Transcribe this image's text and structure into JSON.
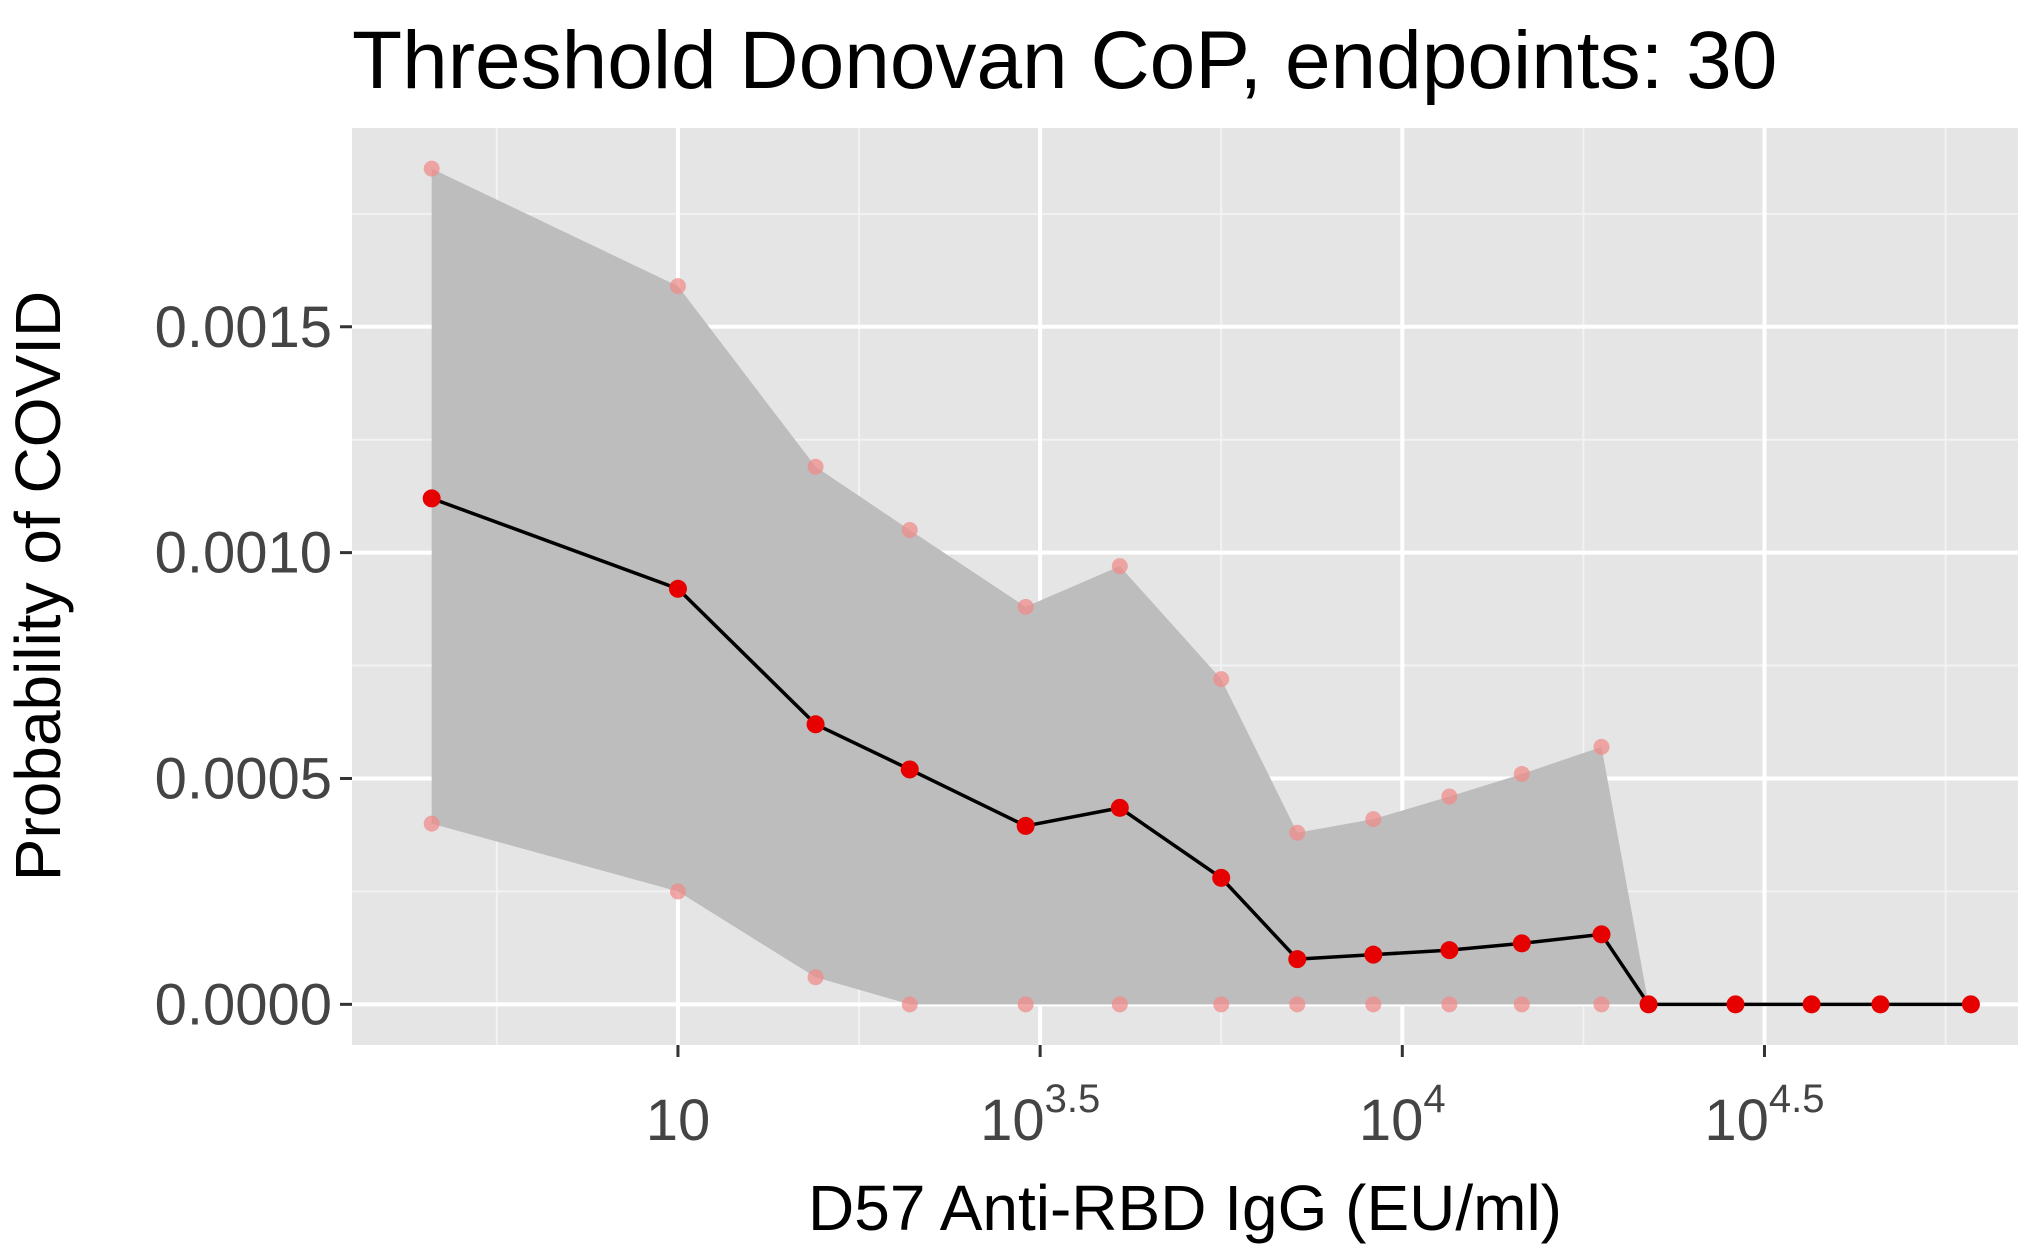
{
  "chart_data": {
    "type": "line",
    "title": "Threshold Donovan CoP, endpoints: 30",
    "xlabel": "D57 Anti-RBD IgG (EU/ml)",
    "ylabel": "Probability of COVID",
    "x_scale": "log10",
    "xlim_log10": [
      2.55,
      4.85
    ],
    "ylim": [
      -9e-05,
      0.00194
    ],
    "x_ticks": [
      {
        "value": 3.0,
        "base": "10",
        "exponent": ""
      },
      {
        "value": 3.5,
        "base": "10",
        "exponent": "3.5"
      },
      {
        "value": 4.0,
        "base": "10",
        "exponent": "4"
      },
      {
        "value": 4.5,
        "base": "10",
        "exponent": "4.5"
      }
    ],
    "y_ticks": [
      {
        "value": 0.0,
        "label": "0.0000"
      },
      {
        "value": 0.0005,
        "label": "0.0005"
      },
      {
        "value": 0.001,
        "label": "0.0010"
      },
      {
        "value": 0.0015,
        "label": "0.0015"
      }
    ],
    "grid": true,
    "series": [
      {
        "x_log10": [
          2.66,
          3.0,
          3.19,
          3.32,
          3.48,
          3.61,
          3.75,
          3.855,
          3.96,
          4.065,
          4.165,
          4.275,
          4.34,
          4.46,
          4.565,
          4.66,
          4.785
        ],
        "estimate": [
          0.00112,
          0.00092,
          0.00062,
          0.00052,
          0.000395,
          0.000435,
          0.00028,
          0.0001,
          0.00011,
          0.00012,
          0.000135,
          0.000155,
          0.0,
          0.0,
          0.0,
          0.0,
          0.0
        ],
        "lower": [
          0.0004,
          0.00025,
          6e-05,
          0.0,
          0.0,
          0.0,
          0.0,
          0.0,
          0.0,
          0.0,
          0.0,
          0.0,
          0.0,
          0.0,
          0.0,
          0.0,
          0.0
        ],
        "upper": [
          0.00185,
          0.00159,
          0.00119,
          0.00105,
          0.00088,
          0.00097,
          0.00072,
          0.00038,
          0.00041,
          0.00046,
          0.00051,
          0.00057,
          0.0,
          0.0,
          0.0,
          0.0,
          0.0
        ]
      }
    ],
    "colors": {
      "panel_bg": "#e5e5e5",
      "grid_major": "#ffffff",
      "grid_minor": "#f2f2f2",
      "ribbon": "#bdbdbd",
      "line": "#000000",
      "point": "#e60000",
      "ci_point": "#f08c8c"
    }
  }
}
